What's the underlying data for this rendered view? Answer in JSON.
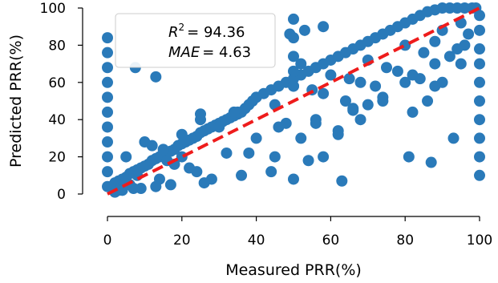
{
  "chart_data": {
    "type": "scatter",
    "xlabel": "Measured PRR(%)",
    "ylabel": "Predicted PRR(%)",
    "xlim": [
      0,
      100
    ],
    "ylim": [
      0,
      100
    ],
    "x_ticks": [
      "0",
      "20",
      "40",
      "60",
      "80",
      "100"
    ],
    "y_ticks": [
      "0",
      "20",
      "40",
      "60",
      "80",
      "100"
    ],
    "grid": false,
    "annotation": {
      "placement": "top-left",
      "r2_label": "R",
      "r2_value": "= 94.36",
      "mae_label": "MAE",
      "mae_value": "= 4.63"
    },
    "reference_line": {
      "style": "dashed",
      "color": "#ee1c1c",
      "from": [
        0,
        0
      ],
      "to": [
        100,
        100
      ]
    },
    "marker_color": "#2a7ab9",
    "series": [
      {
        "x": [
          1,
          2,
          3,
          4,
          5,
          6,
          7,
          8,
          9,
          10,
          11,
          12,
          13,
          14,
          15,
          16,
          17,
          18,
          19,
          20,
          21,
          22,
          23,
          24,
          25,
          26,
          27,
          28,
          29,
          30,
          31,
          32,
          33,
          34,
          35,
          36,
          37,
          38,
          39,
          40,
          42,
          44,
          46,
          48,
          50,
          52,
          54,
          56,
          58,
          60,
          62,
          64,
          66,
          68,
          70,
          72,
          74,
          76,
          78,
          80,
          82,
          84,
          86,
          88,
          90,
          92,
          94,
          96,
          98,
          99,
          5,
          10,
          15,
          20,
          25,
          30,
          35,
          40,
          45,
          50,
          55,
          60,
          65,
          70,
          75,
          80,
          85,
          90,
          95,
          8,
          16,
          24,
          32,
          40,
          48,
          56,
          64,
          72,
          80,
          88,
          96,
          12,
          22,
          34,
          46,
          58,
          68,
          78,
          88,
          3,
          6,
          9,
          14,
          18,
          26,
          38,
          52,
          66,
          74,
          84,
          92,
          0,
          0,
          0,
          0,
          0,
          0,
          0,
          0,
          0,
          0,
          0,
          100,
          100,
          100,
          100,
          100,
          100,
          100,
          100,
          100,
          100,
          2,
          4,
          7,
          13,
          17,
          28,
          36,
          44,
          54,
          62,
          70,
          82,
          94,
          50,
          50,
          50,
          50,
          50,
          50,
          7.5,
          13,
          20,
          25,
          45,
          52,
          56,
          58,
          63,
          66,
          81,
          87,
          93,
          49,
          53,
          58,
          82,
          86,
          88,
          62,
          68,
          74,
          90,
          95,
          97
        ],
        "y": [
          4,
          6,
          7,
          8,
          9,
          11,
          12,
          13,
          14,
          15,
          16,
          18,
          19,
          20,
          21,
          22,
          23,
          24,
          26,
          27,
          28,
          29,
          30,
          31,
          33,
          34,
          35,
          36,
          37,
          38,
          39,
          40,
          41,
          42,
          43,
          44,
          46,
          48,
          50,
          52,
          54,
          56,
          58,
          60,
          62,
          64,
          66,
          68,
          70,
          72,
          74,
          76,
          78,
          80,
          82,
          84,
          86,
          88,
          90,
          92,
          94,
          96,
          98,
          99,
          100,
          100,
          100,
          100,
          100,
          100,
          20,
          28,
          24,
          32,
          40,
          36,
          44,
          52,
          48,
          58,
          56,
          64,
          62,
          72,
          68,
          80,
          76,
          88,
          92,
          10,
          18,
          12,
          22,
          30,
          38,
          40,
          50,
          58,
          60,
          70,
          80,
          26,
          14,
          44,
          36,
          54,
          60,
          66,
          82,
          2,
          5,
          3,
          8,
          16,
          6,
          22,
          30,
          46,
          52,
          62,
          74,
          84,
          76,
          68,
          60,
          52,
          44,
          36,
          28,
          20,
          12,
          4,
          96,
          88,
          78,
          70,
          60,
          50,
          40,
          30,
          20,
          10,
          1,
          2,
          3,
          4,
          5,
          8,
          10,
          12,
          18,
          32,
          48,
          64,
          78,
          94,
          84,
          74,
          66,
          58,
          8,
          68,
          63,
          20,
          43,
          20,
          70,
          38,
          20,
          7,
          45,
          20,
          17,
          30,
          86,
          88,
          90,
          44,
          50,
          58,
          34,
          40,
          50,
          60,
          70,
          86
        ]
      }
    ]
  }
}
